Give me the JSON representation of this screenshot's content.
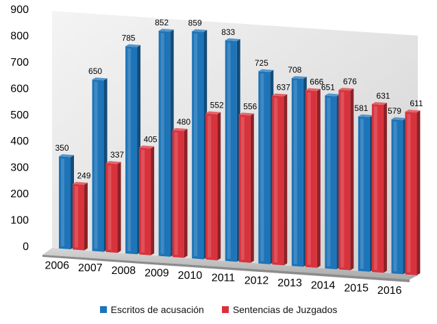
{
  "chart_data": {
    "type": "bar",
    "categories": [
      "2006",
      "2007",
      "2008",
      "2009",
      "2010",
      "2011",
      "2012",
      "2013",
      "2014",
      "2015",
      "2016"
    ],
    "series": [
      {
        "name": "Escritos  de acusación",
        "color": "#1d74b8",
        "values": [
          350,
          650,
          785,
          852,
          859,
          833,
          725,
          708,
          651,
          581,
          579
        ]
      },
      {
        "name": "Sentencias de Juzgados",
        "color": "#d8333c",
        "values": [
          249,
          337,
          405,
          480,
          552,
          556,
          637,
          666,
          676,
          631,
          611
        ]
      }
    ],
    "ylim": [
      0,
      900
    ],
    "yticks": [
      "0",
      "100",
      "200",
      "300",
      "400",
      "500",
      "600",
      "700",
      "800",
      "900"
    ],
    "grid": false,
    "legend_position": "bottom",
    "style": "3d-perspective"
  }
}
